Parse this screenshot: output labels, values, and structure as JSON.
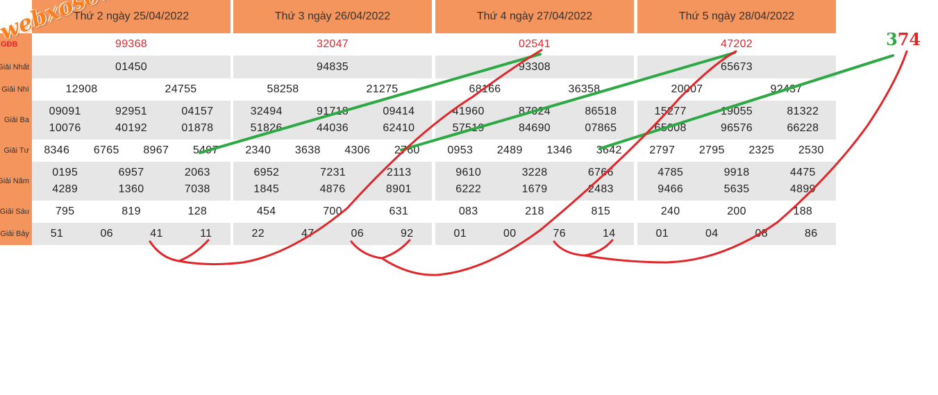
{
  "watermark": "webxoso.net",
  "prize_labels": [
    "GĐB",
    "Giải Nhất",
    "Giải Nhì",
    "Giải Ba",
    "Giải Tư",
    "Giải Năm",
    "Giải Sáu",
    "Giải Bảy"
  ],
  "columns": [
    {
      "header": "Thứ 2 ngày 25/04/2022",
      "special": [
        "99368"
      ],
      "first": [
        "01450"
      ],
      "second": [
        "12908",
        "24755"
      ],
      "third": [
        [
          "09091",
          "92951",
          "04157"
        ],
        [
          "10076",
          "40192",
          "01878"
        ]
      ],
      "fourth": [
        "8346",
        "6765",
        "8967",
        "5497"
      ],
      "fifth": [
        [
          "0195",
          "6957",
          "2063"
        ],
        [
          "4289",
          "1360",
          "7038"
        ]
      ],
      "sixth": [
        "795",
        "819",
        "128"
      ],
      "seventh": [
        "51",
        "06",
        "41",
        "11"
      ]
    },
    {
      "header": "Thứ 3 ngày 26/04/2022",
      "special": [
        "32047"
      ],
      "first": [
        "94835"
      ],
      "second": [
        "58258",
        "21275"
      ],
      "third": [
        [
          "32494",
          "91718",
          "09414"
        ],
        [
          "51826",
          "44036",
          "62410"
        ]
      ],
      "fourth": [
        "2340",
        "3638",
        "4306",
        "2760"
      ],
      "fifth": [
        [
          "6952",
          "7231",
          "2113"
        ],
        [
          "1845",
          "4876",
          "8901"
        ]
      ],
      "sixth": [
        "454",
        "700",
        "631"
      ],
      "seventh": [
        "22",
        "47",
        "06",
        "92"
      ]
    },
    {
      "header": "Thứ 4 ngày 27/04/2022",
      "special": [
        "02541"
      ],
      "first": [
        "93308"
      ],
      "second": [
        "68166",
        "36358"
      ],
      "third": [
        [
          "41960",
          "87024",
          "86518"
        ],
        [
          "57519",
          "84690",
          "07865"
        ]
      ],
      "fourth": [
        "0953",
        "2489",
        "1346",
        "3642"
      ],
      "fifth": [
        [
          "9610",
          "3228",
          "6766"
        ],
        [
          "6222",
          "1679",
          "2483"
        ]
      ],
      "sixth": [
        "083",
        "218",
        "815"
      ],
      "seventh": [
        "01",
        "00",
        "76",
        "14"
      ]
    },
    {
      "header": "Thứ 5 ngày 28/04/2022",
      "special": [
        "47202"
      ],
      "first": [
        "65673"
      ],
      "second": [
        "20007",
        "92437"
      ],
      "third": [
        [
          "15277",
          "19055",
          "81322"
        ],
        [
          "65008",
          "96576",
          "66228"
        ]
      ],
      "fourth": [
        "2797",
        "2795",
        "2325",
        "2530"
      ],
      "fifth": [
        [
          "4785",
          "9918",
          "4475"
        ],
        [
          "9466",
          "5635",
          "4899"
        ]
      ],
      "sixth": [
        "240",
        "200",
        "188"
      ],
      "seventh": [
        "01",
        "04",
        "08",
        "86"
      ]
    }
  ],
  "annotation": {
    "green_part": "3",
    "red_part": "74"
  },
  "colors": {
    "header_bg": "#f4955e",
    "gray_row": "#e6e6e6",
    "special_text": "#e0262a",
    "green_line": "#2ea844",
    "red_line": "#e0262a",
    "watermark": "#fb7f1c"
  }
}
